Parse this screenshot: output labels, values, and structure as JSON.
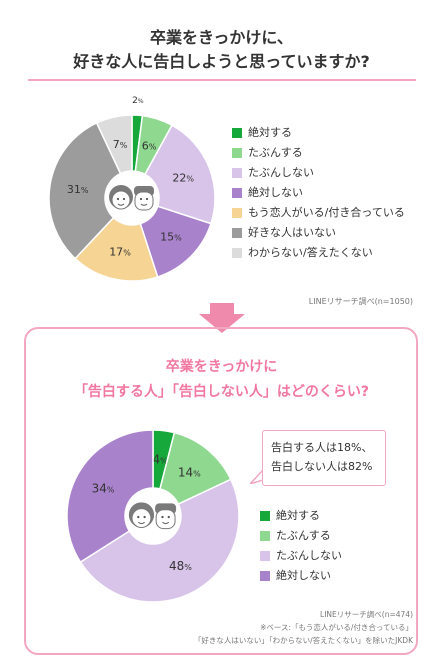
{
  "header": {
    "title_line1": "卒業をきっかけに、",
    "title_line2": "好きな人に告白しようと思っていますか?"
  },
  "chart_data": [
    {
      "type": "pie",
      "categories": [
        "絶対する",
        "たぶんする",
        "たぶんしない",
        "絶対しない",
        "もう恋人がいる/付き合っている",
        "好きな人はいない",
        "わからない/答えたくない"
      ],
      "values": [
        2,
        6,
        22,
        15,
        17,
        31,
        7
      ],
      "value_labels": [
        "2%",
        "6%",
        "22%",
        "15%",
        "17%",
        "31%",
        "7%"
      ],
      "colors": [
        "#16a83a",
        "#8fd890",
        "#d8c4e8",
        "#a982cc",
        "#f6d494",
        "#9c9c9c",
        "#dcdcdc"
      ],
      "legend_position": "right"
    },
    {
      "type": "pie",
      "categories": [
        "絶対する",
        "たぶんする",
        "たぶんしない",
        "絶対しない"
      ],
      "values": [
        4,
        14,
        48,
        34
      ],
      "value_labels": [
        "4%",
        "14%",
        "48%",
        "34%"
      ],
      "colors": [
        "#16a83a",
        "#8fd890",
        "#d8c4e8",
        "#a982cc"
      ],
      "legend_position": "bottom-right"
    }
  ],
  "source1": "LINEリサーチ調べ(n=1050)",
  "section2": {
    "heading_line1": "卒業をきっかけに",
    "heading_line2": "「告白する人」「告白しない人」はどのくらい?",
    "callout_line1": "告白する人は18%、",
    "callout_line2": "告白しない人は82%",
    "source": "LINEリサーチ調べ(n=474)",
    "note_line1": "※ベース:「もう恋人がいる/付き合っている」",
    "note_line2": "「好きな人はいない」「わからない/答えたくない」を除いたJKDK"
  },
  "colors": {
    "accent_pink": "#f178a0",
    "border_pink": "#f3a7bf",
    "arrow_pink": "#f08aac"
  }
}
